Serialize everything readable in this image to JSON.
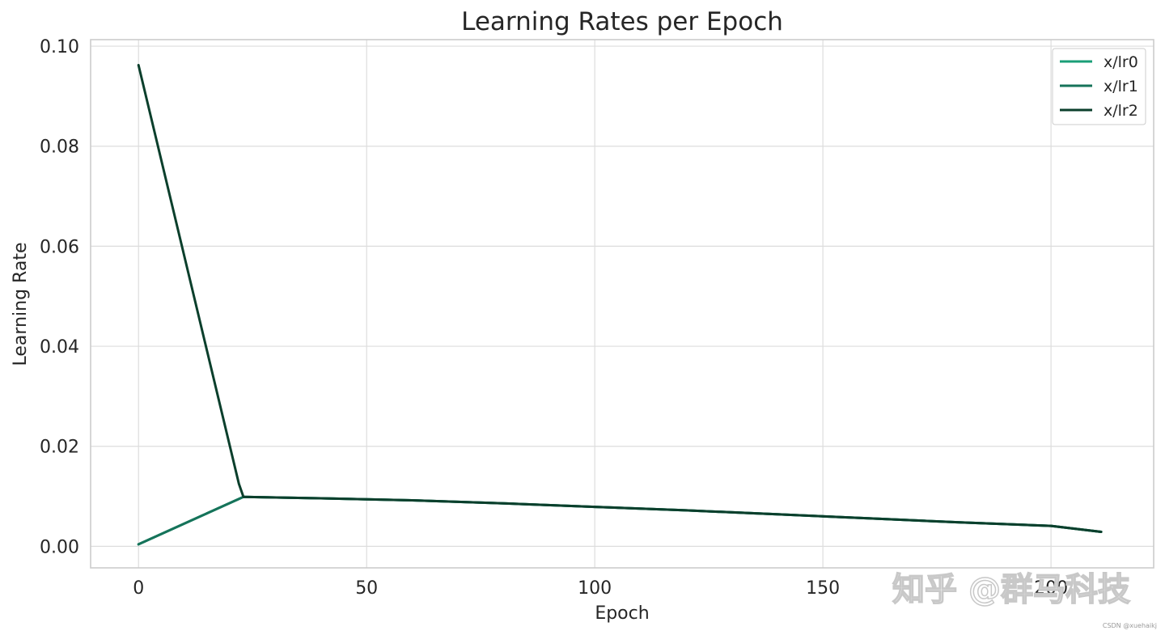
{
  "chart_data": {
    "type": "line",
    "title": "Learning Rates per Epoch",
    "xlabel": "Epoch",
    "ylabel": "Learning Rate",
    "xlim": [
      -10.5,
      222.5
    ],
    "ylim": [
      -0.0043,
      0.1013
    ],
    "xticks": [
      0,
      50,
      100,
      150,
      200
    ],
    "yticks": [
      0.0,
      0.02,
      0.04,
      0.06,
      0.08,
      0.1
    ],
    "xtick_labels": [
      "0",
      "50",
      "100",
      "150",
      "200"
    ],
    "ytick_labels": [
      "0.00",
      "0.02",
      "0.04",
      "0.06",
      "0.08",
      "0.10"
    ],
    "grid": true,
    "legend_position": "top-right",
    "series": [
      {
        "name": "x/lr0",
        "color": "#1a9e77",
        "x": [
          0,
          23,
          40,
          60,
          80,
          100,
          120,
          140,
          160,
          180,
          200,
          211
        ],
        "y": [
          0.0004,
          0.0099,
          0.0096,
          0.0092,
          0.0086,
          0.0079,
          0.0072,
          0.0064,
          0.0056,
          0.0048,
          0.0041,
          0.0029
        ]
      },
      {
        "name": "x/lr1",
        "color": "#16735a",
        "x": [
          0,
          23,
          40,
          60,
          80,
          100,
          120,
          140,
          160,
          180,
          200,
          211
        ],
        "y": [
          0.0004,
          0.0099,
          0.0096,
          0.0092,
          0.0086,
          0.0079,
          0.0072,
          0.0064,
          0.0056,
          0.0048,
          0.0041,
          0.0029
        ]
      },
      {
        "name": "x/lr2",
        "color": "#0b3f2c",
        "x": [
          0,
          22,
          23,
          40,
          60,
          80,
          100,
          120,
          140,
          160,
          180,
          200,
          211
        ],
        "y": [
          0.0962,
          0.0125,
          0.0099,
          0.0096,
          0.0092,
          0.0086,
          0.0079,
          0.0072,
          0.0064,
          0.0056,
          0.0048,
          0.0041,
          0.0029
        ]
      }
    ]
  },
  "watermark": "知乎 @群马科技",
  "credit": "CSDN @xuehaikj"
}
